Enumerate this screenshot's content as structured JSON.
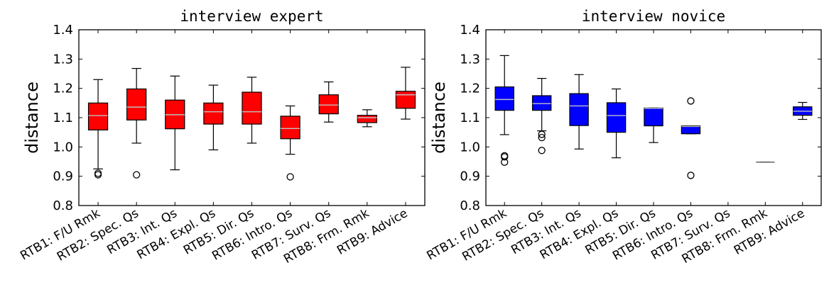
{
  "chart_data": [
    {
      "type": "boxplot",
      "title": "interview expert",
      "xlabel": "",
      "ylabel": "distance",
      "ylim": [
        0.8,
        1.4
      ],
      "yticks": [
        "0.8",
        "0.9",
        "1.0",
        "1.1",
        "1.2",
        "1.3",
        "1.4"
      ],
      "grid": false,
      "box_color": "#ff0000",
      "median_color": "#bfbfbf",
      "categories": [
        "RTB1: F/U Rmk",
        "RTB2: Spec. Qs",
        "RTB3: Int. Qs",
        "RTB4: Expl. Qs",
        "RTB5: Dir. Qs",
        "RTB6: Intro. Qs",
        "RTB7: Surv. Qs",
        "RTB8: Frm. Rmk",
        "RTB9: Advice"
      ],
      "boxes": [
        {
          "whislo": 0.925,
          "q1": 1.058,
          "med": 1.107,
          "q3": 1.15,
          "whishi": 1.23,
          "fliers": [
            0.905,
            0.91
          ]
        },
        {
          "whislo": 1.013,
          "q1": 1.092,
          "med": 1.136,
          "q3": 1.198,
          "whishi": 1.268,
          "fliers": [
            0.905
          ]
        },
        {
          "whislo": 0.922,
          "q1": 1.062,
          "med": 1.11,
          "q3": 1.16,
          "whishi": 1.242,
          "fliers": []
        },
        {
          "whislo": 0.99,
          "q1": 1.078,
          "med": 1.12,
          "q3": 1.15,
          "whishi": 1.211,
          "fliers": []
        },
        {
          "whislo": 1.013,
          "q1": 1.078,
          "med": 1.12,
          "q3": 1.187,
          "whishi": 1.238,
          "fliers": []
        },
        {
          "whislo": 0.975,
          "q1": 1.028,
          "med": 1.063,
          "q3": 1.105,
          "whishi": 1.14,
          "fliers": [
            0.898
          ]
        },
        {
          "whislo": 1.085,
          "q1": 1.113,
          "med": 1.143,
          "q3": 1.178,
          "whishi": 1.222,
          "fliers": []
        },
        {
          "whislo": 1.069,
          "q1": 1.083,
          "med": 1.1,
          "q3": 1.108,
          "whishi": 1.127,
          "fliers": []
        },
        {
          "whislo": 1.095,
          "q1": 1.132,
          "med": 1.178,
          "q3": 1.19,
          "whishi": 1.272,
          "fliers": []
        }
      ]
    },
    {
      "type": "boxplot",
      "title": "interview novice",
      "xlabel": "",
      "ylabel": "distance",
      "ylim": [
        0.8,
        1.4
      ],
      "yticks": [
        "0.8",
        "0.9",
        "1.0",
        "1.1",
        "1.2",
        "1.3",
        "1.4"
      ],
      "grid": false,
      "box_color": "#0000ff",
      "median_color": "#bfbfbf",
      "categories": [
        "RTB1: F/U Rmk",
        "RTB2: Spec. Qs",
        "RTB3: Int. Qs",
        "RTB4: Expl. Qs",
        "RTB5: Dir. Qs",
        "RTB6: Intro. Qs",
        "RTB7: Surv. Qs",
        "RTB8: Frm. Rmk",
        "RTB9: Advice"
      ],
      "boxes": [
        {
          "whislo": 1.042,
          "q1": 1.125,
          "med": 1.162,
          "q3": 1.205,
          "whishi": 1.312,
          "fliers": [
            0.948,
            0.966,
            0.97
          ]
        },
        {
          "whislo": 1.055,
          "q1": 1.125,
          "med": 1.148,
          "q3": 1.175,
          "whishi": 1.234,
          "fliers": [
            0.988,
            1.032,
            1.043
          ]
        },
        {
          "whislo": 0.993,
          "q1": 1.073,
          "med": 1.14,
          "q3": 1.182,
          "whishi": 1.247,
          "fliers": []
        },
        {
          "whislo": 0.963,
          "q1": 1.05,
          "med": 1.107,
          "q3": 1.151,
          "whishi": 1.198,
          "fliers": []
        },
        {
          "whislo": 1.015,
          "q1": 1.072,
          "med": 1.132,
          "q3": 1.133,
          "whishi": 1.133,
          "fliers": []
        },
        {
          "whislo": 1.045,
          "q1": 1.045,
          "med": 1.07,
          "q3": 1.072,
          "whishi": 1.072,
          "fliers": [
            0.903,
            1.157
          ]
        },
        null,
        {
          "whislo": 0.948,
          "q1": 0.948,
          "med": 0.948,
          "q3": 0.948,
          "whishi": 0.948,
          "fliers": []
        },
        {
          "whislo": 1.094,
          "q1": 1.108,
          "med": 1.122,
          "q3": 1.137,
          "whishi": 1.152,
          "fliers": []
        }
      ]
    }
  ]
}
